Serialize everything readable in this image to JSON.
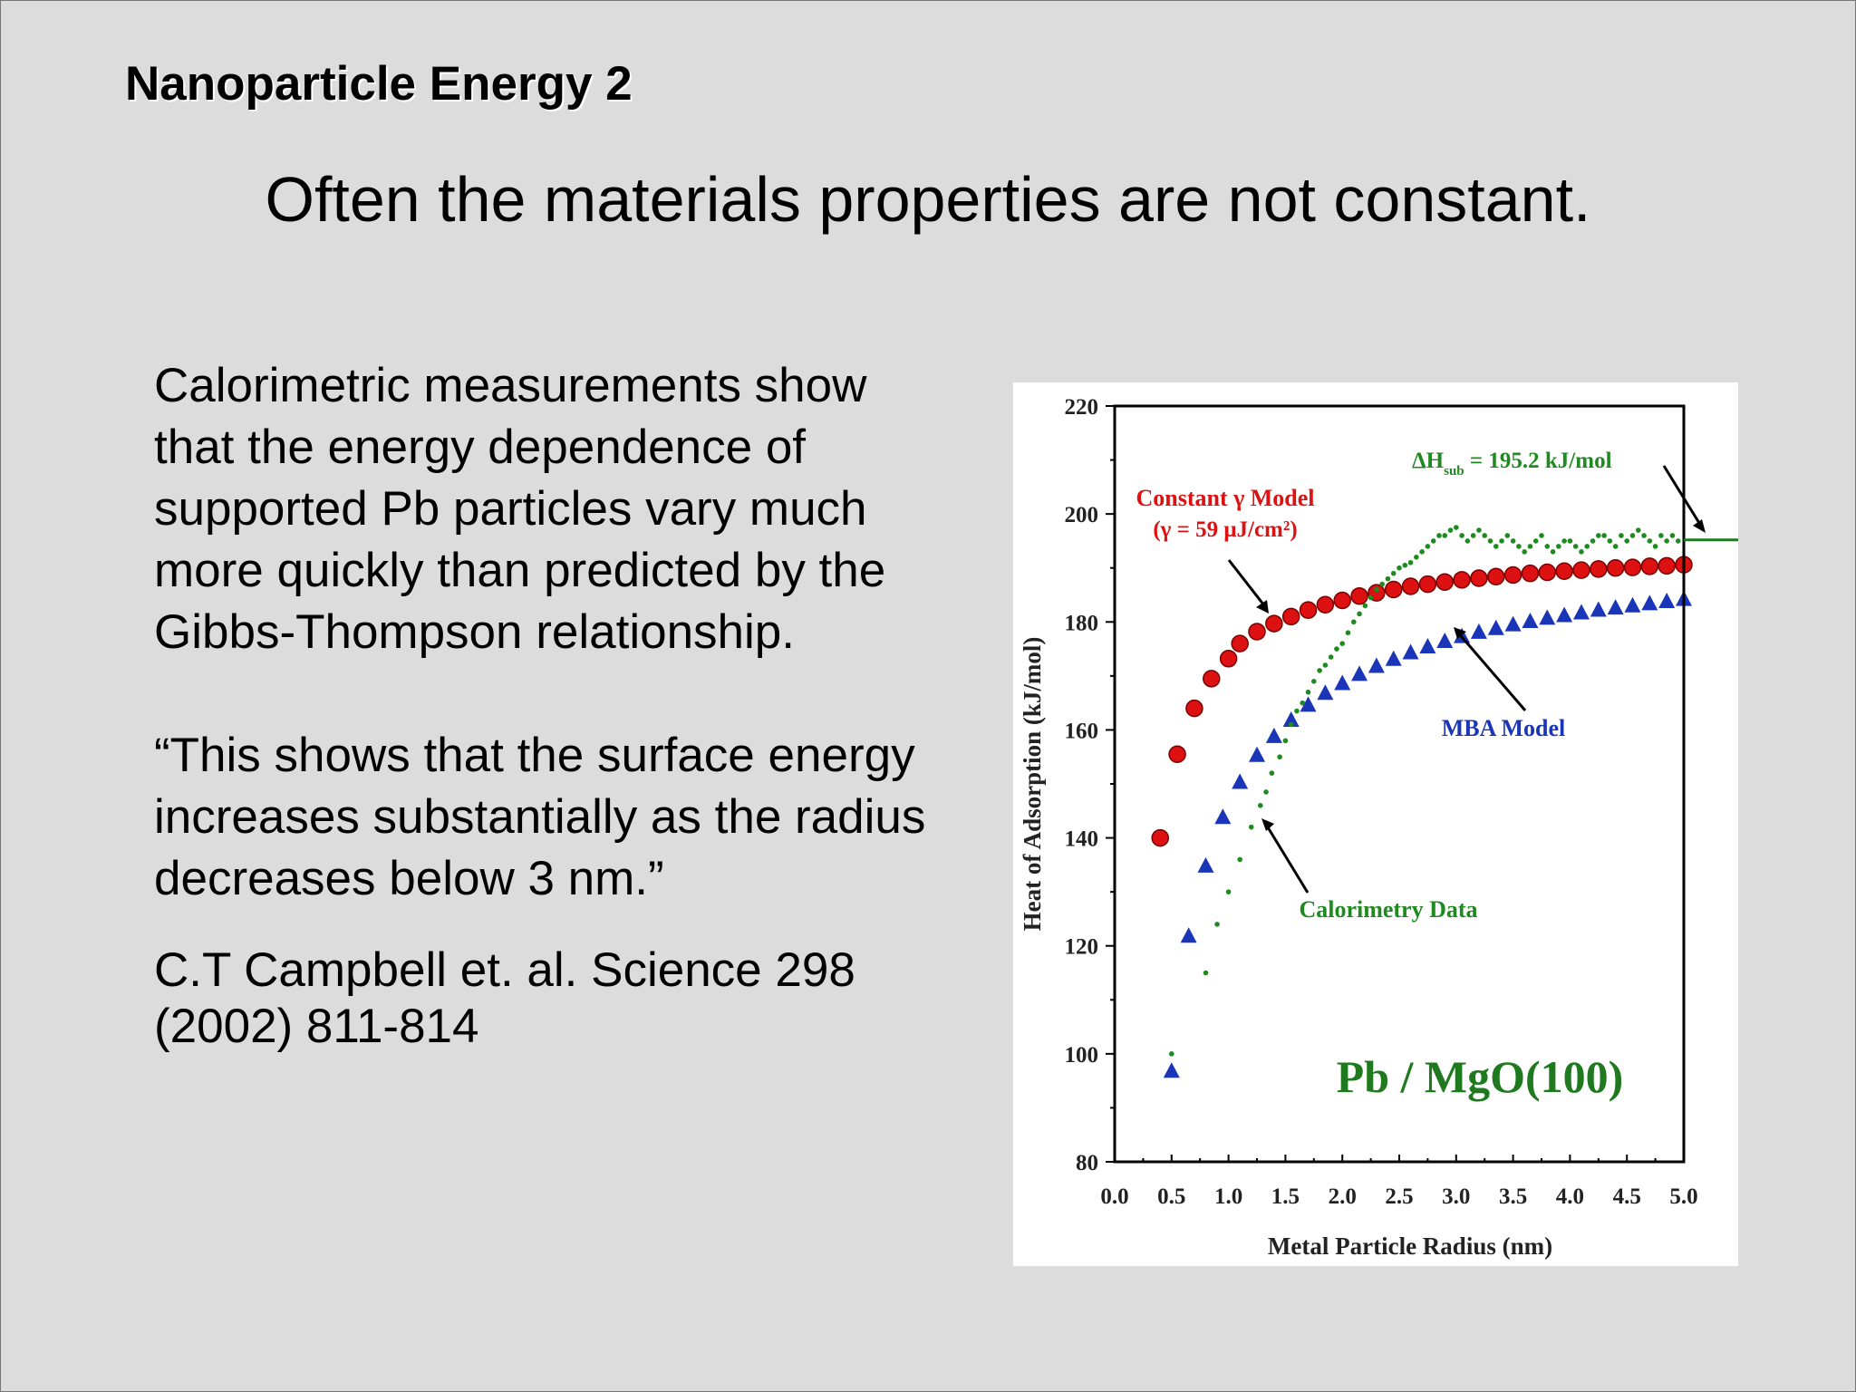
{
  "slide": {
    "title": "Nanoparticle Energy 2",
    "subtitle": "Often the materials properties are not constant.",
    "paragraph": "Calorimetric measurements show that the energy dependence of supported Pb particles vary much more quickly than predicted by the Gibbs-Thompson relationship.",
    "quote": "“This shows that the surface energy increases substantially as the radius decreases below 3 nm.”",
    "citation": "C.T Campbell et. al. Science 298 (2002) 811-814"
  },
  "colors": {
    "background": "#dcdcdc",
    "constant_model": "#dd1111",
    "mba_model": "#1a35b8",
    "calorimetry": "#1f8a1f",
    "panel_label": "#1f7a1f"
  },
  "chart_data": {
    "type": "scatter",
    "xlabel": "Metal Particle Radius (nm)",
    "ylabel": "Heat of Adsorption (kJ/mol)",
    "xlim": [
      0.0,
      5.0
    ],
    "ylim": [
      80,
      220
    ],
    "xticks": [
      "0.0",
      "0.5",
      "1.0",
      "1.5",
      "2.0",
      "2.5",
      "3.0",
      "3.5",
      "4.0",
      "4.5",
      "5.0"
    ],
    "yticks": [
      "80",
      "100",
      "120",
      "140",
      "160",
      "180",
      "200",
      "220"
    ],
    "grid": false,
    "annotations": {
      "panel_label": "Pb / MgO(100)",
      "constant_model_line1": "Constant γ Model",
      "constant_model_line2": "(γ = 59 μJ/cm²)",
      "mba_model": "MBA Model",
      "calorimetry": "Calorimetry Data",
      "delta_h_prefix": "ΔH",
      "delta_h_sub": "sub",
      "delta_h_suffix": " = 195.2 kJ/mol"
    },
    "reference_line": {
      "y": 195.2
    },
    "series": [
      {
        "name": "Constant γ Model",
        "marker": "circle",
        "x": [
          0.4,
          0.55,
          0.7,
          0.85,
          1.0,
          1.1,
          1.25,
          1.4,
          1.55,
          1.7,
          1.85,
          2.0,
          2.15,
          2.3,
          2.45,
          2.6,
          2.75,
          2.9,
          3.05,
          3.2,
          3.35,
          3.5,
          3.65,
          3.8,
          3.95,
          4.1,
          4.25,
          4.4,
          4.55,
          4.7,
          4.85,
          5.0
        ],
        "y": [
          140,
          155.5,
          164,
          169.5,
          173.2,
          176,
          178.2,
          179.7,
          181,
          182.2,
          183.2,
          184,
          184.8,
          185.4,
          186,
          186.6,
          187,
          187.4,
          187.8,
          188.1,
          188.4,
          188.7,
          189,
          189.2,
          189.4,
          189.6,
          189.8,
          190,
          190.1,
          190.3,
          190.4,
          190.6
        ]
      },
      {
        "name": "MBA Model",
        "marker": "triangle",
        "x": [
          0.5,
          0.65,
          0.8,
          0.95,
          1.1,
          1.25,
          1.4,
          1.55,
          1.7,
          1.85,
          2.0,
          2.15,
          2.3,
          2.45,
          2.6,
          2.75,
          2.9,
          3.05,
          3.2,
          3.35,
          3.5,
          3.65,
          3.8,
          3.95,
          4.1,
          4.25,
          4.4,
          4.55,
          4.7,
          4.85,
          5.0
        ],
        "y": [
          97,
          122,
          135,
          144,
          150.5,
          155.5,
          159,
          162,
          164.8,
          167,
          168.8,
          170.5,
          172,
          173.3,
          174.5,
          175.6,
          176.6,
          177.5,
          178.3,
          179,
          179.7,
          180.3,
          180.9,
          181.4,
          181.9,
          182.4,
          182.8,
          183.2,
          183.6,
          184,
          184.4
        ]
      },
      {
        "name": "Calorimetry Data",
        "marker": "dot",
        "x": [
          0.5,
          0.8,
          0.9,
          1.0,
          1.1,
          1.2,
          1.28,
          1.33,
          1.38,
          1.45,
          1.5,
          1.55,
          1.6,
          1.65,
          1.7,
          1.75,
          1.8,
          1.85,
          1.9,
          1.95,
          2.0,
          2.05,
          2.1,
          2.15,
          2.2,
          2.25,
          2.3,
          2.35,
          2.4,
          2.45,
          2.5,
          2.55,
          2.6,
          2.65,
          2.7,
          2.75,
          2.8,
          2.85,
          2.9,
          2.95,
          3.0,
          3.05,
          3.1,
          3.15,
          3.2,
          3.25,
          3.3,
          3.35,
          3.4,
          3.45,
          3.5,
          3.55,
          3.6,
          3.65,
          3.7,
          3.75,
          3.8,
          3.85,
          3.9,
          3.95,
          4.0,
          4.05,
          4.1,
          4.15,
          4.2,
          4.25,
          4.3,
          4.35,
          4.4,
          4.45,
          4.5,
          4.55,
          4.6,
          4.65,
          4.7,
          4.75,
          4.8,
          4.85,
          4.9,
          4.95
        ],
        "y": [
          100,
          115,
          124,
          130,
          136,
          142,
          146,
          148.5,
          152,
          155,
          158,
          161,
          163.5,
          165,
          167,
          169,
          171,
          172,
          173.5,
          175,
          176,
          178,
          180,
          181.5,
          183,
          184.5,
          186,
          187,
          188,
          189,
          190,
          190.5,
          191,
          192,
          193,
          194,
          195,
          196,
          196,
          197,
          197.5,
          196,
          195,
          196,
          197,
          196,
          195,
          194,
          195,
          196,
          195,
          194,
          193,
          194,
          195,
          196,
          194,
          193,
          194,
          195,
          195,
          194,
          193,
          194,
          195,
          196,
          196,
          195,
          194,
          196,
          195,
          196,
          197,
          196,
          195,
          194,
          196,
          195,
          196,
          195
        ]
      }
    ]
  }
}
